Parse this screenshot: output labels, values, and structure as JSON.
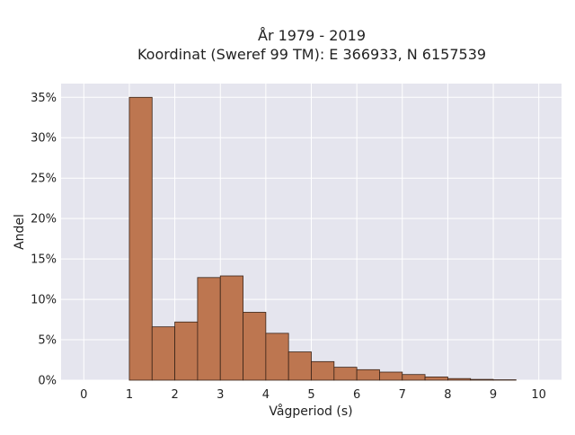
{
  "chart_data": {
    "type": "bar",
    "title": "År 1979 - 2019",
    "subtitle": "Koordinat (Sweref 99 TM): E 366933, N 6157539",
    "xlabel": "Vågperiod (s)",
    "ylabel": "Andel",
    "xlim": [
      -0.5,
      10.5
    ],
    "ylim": [
      0,
      0.367
    ],
    "x_ticks": [
      0,
      1,
      2,
      3,
      4,
      5,
      6,
      7,
      8,
      9,
      10
    ],
    "x_tick_labels": [
      "0",
      "1",
      "2",
      "3",
      "4",
      "5",
      "6",
      "7",
      "8",
      "9",
      "10"
    ],
    "y_ticks": [
      0,
      0.05,
      0.1,
      0.15,
      0.2,
      0.25,
      0.3,
      0.35
    ],
    "y_tick_labels": [
      "0%",
      "5%",
      "10%",
      "15%",
      "20%",
      "25%",
      "30%",
      "35%"
    ],
    "grid": true,
    "bin_width": 0.5,
    "bins": [
      {
        "start": 1.0,
        "end": 1.5,
        "value": 0.35
      },
      {
        "start": 1.5,
        "end": 2.0,
        "value": 0.066
      },
      {
        "start": 2.0,
        "end": 2.5,
        "value": 0.072
      },
      {
        "start": 2.5,
        "end": 3.0,
        "value": 0.127
      },
      {
        "start": 3.0,
        "end": 3.5,
        "value": 0.129
      },
      {
        "start": 3.5,
        "end": 4.0,
        "value": 0.084
      },
      {
        "start": 4.0,
        "end": 4.5,
        "value": 0.058
      },
      {
        "start": 4.5,
        "end": 5.0,
        "value": 0.035
      },
      {
        "start": 5.0,
        "end": 5.5,
        "value": 0.023
      },
      {
        "start": 5.5,
        "end": 6.0,
        "value": 0.016
      },
      {
        "start": 6.0,
        "end": 6.5,
        "value": 0.013
      },
      {
        "start": 6.5,
        "end": 7.0,
        "value": 0.01
      },
      {
        "start": 7.0,
        "end": 7.5,
        "value": 0.007
      },
      {
        "start": 7.5,
        "end": 8.0,
        "value": 0.004
      },
      {
        "start": 8.0,
        "end": 8.5,
        "value": 0.002
      },
      {
        "start": 8.5,
        "end": 9.0,
        "value": 0.001
      },
      {
        "start": 9.0,
        "end": 9.5,
        "value": 0.0005
      }
    ],
    "colors": {
      "bar_fill": "#bd7650",
      "bar_stroke": "#3a2418",
      "plot_background": "#e5e5ee",
      "grid": "#ffffff"
    }
  }
}
